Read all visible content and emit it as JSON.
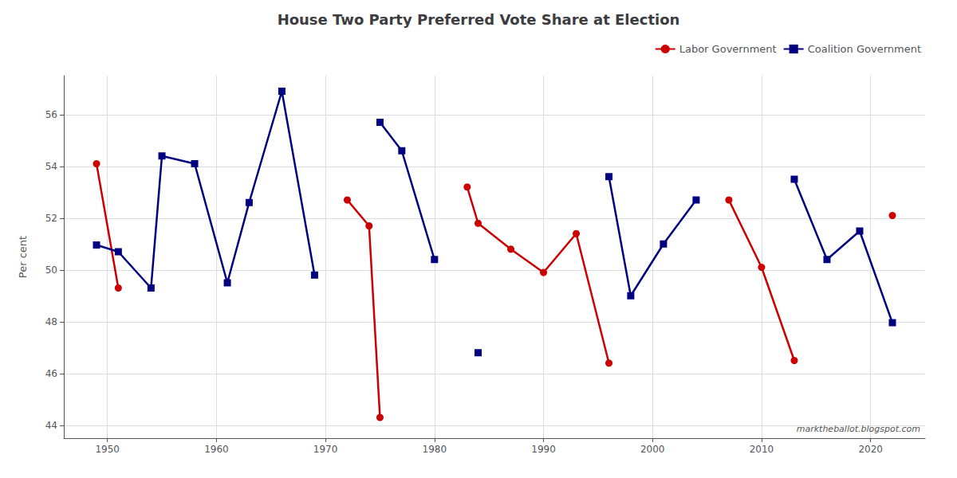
{
  "chart_data": {
    "type": "line",
    "title": "House Two Party Preferred Vote Share at Election",
    "ylabel": "Per cent",
    "annotation": "marktheballot.blogspot.com",
    "x": [
      1949,
      1951,
      1954,
      1955,
      1958,
      1961,
      1963,
      1966,
      1969,
      1972,
      1974,
      1975,
      1977,
      1980,
      1983,
      1984,
      1987,
      1990,
      1993,
      1996,
      1998,
      2001,
      2004,
      2007,
      2010,
      2013,
      2016,
      2019,
      2022
    ],
    "series": [
      {
        "name": "Labor Government",
        "color": "#cc0000",
        "marker": "circle",
        "values": [
          54.1,
          49.3,
          null,
          null,
          null,
          null,
          null,
          null,
          null,
          52.7,
          51.7,
          44.3,
          null,
          null,
          53.2,
          51.8,
          50.8,
          49.9,
          51.4,
          46.4,
          null,
          null,
          null,
          52.7,
          50.1,
          46.5,
          null,
          null,
          52.1
        ]
      },
      {
        "name": "Coalition Government",
        "color": "#000080",
        "marker": "square",
        "values": [
          50.96,
          50.7,
          49.3,
          54.4,
          54.1,
          49.5,
          52.6,
          56.9,
          49.8,
          null,
          null,
          55.7,
          54.6,
          50.4,
          null,
          46.8,
          null,
          null,
          null,
          53.6,
          49.0,
          51.0,
          52.7,
          null,
          null,
          53.5,
          50.4,
          51.5,
          47.96
        ]
      }
    ],
    "xlim": [
      1946,
      2025
    ],
    "xticks": [
      1950,
      1960,
      1970,
      1980,
      1990,
      2000,
      2010,
      2020
    ],
    "ylim": [
      43.5,
      57.5
    ],
    "yticks": [
      44,
      46,
      48,
      50,
      52,
      54,
      56
    ],
    "grid": true,
    "legend": "upper right"
  }
}
